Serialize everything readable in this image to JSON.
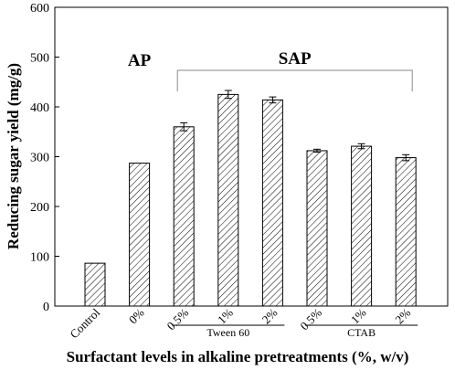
{
  "chart_data": {
    "type": "bar",
    "xlabel": "Surfactant levels in alkaline pretreatments (%, w/v)",
    "ylabel": "Reducing sugar yield (mg/g)",
    "ylim": [
      0,
      600
    ],
    "yticks": [
      0,
      100,
      200,
      300,
      400,
      500,
      600
    ],
    "categories": [
      "Control",
      "0%",
      "0.5%",
      "1%",
      "2%",
      "0.5%",
      "1%",
      "2%"
    ],
    "values": [
      86,
      287,
      360,
      425,
      414,
      312,
      321,
      298
    ],
    "errors": [
      0,
      0,
      8,
      8,
      6,
      3,
      5,
      6
    ],
    "fill_pattern": "diagonal-hatch",
    "bar_color": "#000000",
    "grid": false,
    "groups": [
      {
        "label": "Tween 60",
        "from": 2,
        "to": 4
      },
      {
        "label": "CTAB",
        "from": 5,
        "to": 7
      }
    ],
    "annotations": {
      "ap": {
        "label": "AP",
        "over": [
          1,
          1
        ]
      },
      "sap": {
        "label": "SAP",
        "over": [
          2,
          7
        ]
      }
    }
  }
}
